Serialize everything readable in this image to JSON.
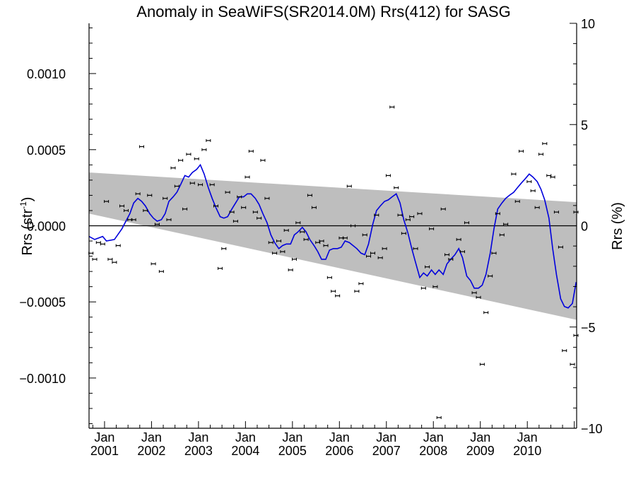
{
  "chart_data": {
    "type": "scatter",
    "title": "Anomaly in SeaWiFS(SR2014.0M) Rrs(412) for SASG",
    "ylabel_left": "Rrs (str",
    "ylabel_left_sup": "-1",
    "ylabel_left_close": ")",
    "ylabel_right": "Rrs (%)",
    "ylim": [
      -0.00133,
      0.00133
    ],
    "ylim_right": [
      -10,
      10
    ],
    "yticks_left": [
      -0.001,
      -0.0005,
      0.0,
      0.0005,
      0.001
    ],
    "yticks_left_labels": [
      "−0.0010",
      "−0.0005",
      "0.0000",
      "0.0005",
      "0.0010"
    ],
    "yticks_right": [
      -10,
      -5,
      0,
      5,
      10
    ],
    "yticks_right_labels": [
      "−10",
      "−5",
      "0",
      "5",
      "10"
    ],
    "xlim": [
      "2000-09",
      "2011-01"
    ],
    "xticks": [
      {
        "month": "Jan",
        "year": "2001",
        "x": 2001.0
      },
      {
        "month": "Jan",
        "year": "2002",
        "x": 2002.0
      },
      {
        "month": "Jan",
        "year": "2003",
        "x": 2003.0
      },
      {
        "month": "Jan",
        "year": "2004",
        "x": 2004.0
      },
      {
        "month": "Jan",
        "year": "2005",
        "x": 2005.0
      },
      {
        "month": "Jan",
        "year": "2006",
        "x": 2006.0
      },
      {
        "month": "Jan",
        "year": "2007",
        "x": 2007.0
      },
      {
        "month": "Jan",
        "year": "2008",
        "x": 2008.0
      },
      {
        "month": "Jan",
        "year": "2009",
        "x": 2009.0
      },
      {
        "month": "Jan",
        "year": "2010",
        "x": 2010.0
      }
    ],
    "band": {
      "x": [
        2000.67,
        2011.05
      ],
      "upper": [
        0.00035,
        0.000155
      ],
      "lower": [
        8e-05,
        -0.000618
      ]
    },
    "zero_line": 0,
    "series": [
      {
        "type": "scatter-errorbar",
        "color": "#000000",
        "points": [
          [
            2000.71,
            -0.00018
          ],
          [
            2000.79,
            -0.00022
          ],
          [
            2000.87,
            -0.00011
          ],
          [
            2000.96,
            -0.00012
          ],
          [
            2001.04,
            0.00016
          ],
          [
            2001.12,
            -0.00022
          ],
          [
            2001.21,
            -0.00024
          ],
          [
            2001.29,
            -0.00013
          ],
          [
            2001.37,
            0.00013
          ],
          [
            2001.46,
            0.0001
          ],
          [
            2001.54,
            4e-05
          ],
          [
            2001.62,
            4e-05
          ],
          [
            2001.71,
            0.00021
          ],
          [
            2001.79,
            0.00052
          ],
          [
            2001.87,
            0.0001
          ],
          [
            2001.96,
            0.0002
          ],
          [
            2002.04,
            -0.00025
          ],
          [
            2002.12,
            1e-05
          ],
          [
            2002.21,
            -0.0003
          ],
          [
            2002.29,
            0.00018
          ],
          [
            2002.37,
            4e-05
          ],
          [
            2002.46,
            0.00038
          ],
          [
            2002.54,
            0.00026
          ],
          [
            2002.62,
            0.00043
          ],
          [
            2002.71,
            0.00011
          ],
          [
            2002.79,
            0.00047
          ],
          [
            2002.87,
            0.00028
          ],
          [
            2002.96,
            0.00044
          ],
          [
            2003.04,
            0.00027
          ],
          [
            2003.12,
            0.0005
          ],
          [
            2003.21,
            0.00056
          ],
          [
            2003.29,
            0.00027
          ],
          [
            2003.37,
            0.00013
          ],
          [
            2003.46,
            -0.00028
          ],
          [
            2003.54,
            -0.00015
          ],
          [
            2003.62,
            0.00022
          ],
          [
            2003.71,
            9e-05
          ],
          [
            2003.79,
            3e-05
          ],
          [
            2003.87,
            0.00019
          ],
          [
            2003.96,
            0.00012
          ],
          [
            2004.04,
            0.00032
          ],
          [
            2004.12,
            0.00049
          ],
          [
            2004.21,
            9e-05
          ],
          [
            2004.29,
            5e-05
          ],
          [
            2004.37,
            0.00043
          ],
          [
            2004.46,
            0.00018
          ],
          [
            2004.54,
            -0.00011
          ],
          [
            2004.62,
            -0.00018
          ],
          [
            2004.71,
            -0.0001
          ],
          [
            2004.79,
            -0.00017
          ],
          [
            2004.87,
            -3e-05
          ],
          [
            2004.96,
            -0.00029
          ],
          [
            2005.04,
            -0.00022
          ],
          [
            2005.12,
            2e-05
          ],
          [
            2005.21,
            -4e-05
          ],
          [
            2005.29,
            -9e-05
          ],
          [
            2005.37,
            0.0002
          ],
          [
            2005.46,
            0.00012
          ],
          [
            2005.54,
            -0.00011
          ],
          [
            2005.62,
            -0.0001
          ],
          [
            2005.71,
            -0.00013
          ],
          [
            2005.79,
            -0.00034
          ],
          [
            2005.87,
            -0.00043
          ],
          [
            2005.96,
            -0.00046
          ],
          [
            2006.04,
            -8e-05
          ],
          [
            2006.12,
            -8e-05
          ],
          [
            2006.21,
            0.00026
          ],
          [
            2006.29,
            0.0
          ],
          [
            2006.37,
            -0.00043
          ],
          [
            2006.46,
            -0.00038
          ],
          [
            2006.54,
            -6e-05
          ],
          [
            2006.62,
            -0.0002
          ],
          [
            2006.71,
            -0.00018
          ],
          [
            2006.79,
            7e-05
          ],
          [
            2006.87,
            -0.00021
          ],
          [
            2006.96,
            -0.00015
          ],
          [
            2007.04,
            0.00033
          ],
          [
            2007.12,
            0.00078
          ],
          [
            2007.21,
            0.00025
          ],
          [
            2007.29,
            7e-05
          ],
          [
            2007.37,
            -5e-05
          ],
          [
            2007.46,
            4e-05
          ],
          [
            2007.54,
            6e-05
          ],
          [
            2007.62,
            -0.00015
          ],
          [
            2007.71,
            8e-05
          ],
          [
            2007.79,
            -0.00041
          ],
          [
            2007.87,
            -0.00027
          ],
          [
            2007.96,
            -2e-05
          ],
          [
            2008.04,
            -0.0004
          ],
          [
            2008.12,
            -0.00126
          ],
          [
            2008.21,
            0.00011
          ],
          [
            2008.29,
            -0.00019
          ],
          [
            2008.37,
            -0.00022
          ],
          [
            2008.54,
            -9e-05
          ],
          [
            2008.62,
            -0.00017
          ],
          [
            2008.71,
            2e-05
          ],
          [
            2008.87,
            -0.00044
          ],
          [
            2008.96,
            -0.00047
          ],
          [
            2009.04,
            -0.00091
          ],
          [
            2009.12,
            -0.00057
          ],
          [
            2009.21,
            -0.00033
          ],
          [
            2009.29,
            -0.00018
          ],
          [
            2009.37,
            8e-05
          ],
          [
            2009.46,
            -6e-05
          ],
          [
            2009.54,
            1e-05
          ],
          [
            2009.71,
            0.00034
          ],
          [
            2009.79,
            0.00016
          ],
          [
            2009.87,
            0.00049
          ],
          [
            2010.04,
            0.00029
          ],
          [
            2010.12,
            0.00023
          ],
          [
            2010.21,
            0.00012
          ],
          [
            2010.29,
            0.00047
          ],
          [
            2010.37,
            0.00054
          ],
          [
            2010.46,
            0.00033
          ],
          [
            2010.54,
            0.00032
          ],
          [
            2010.62,
            9e-05
          ],
          [
            2010.71,
            -0.00014
          ],
          [
            2010.79,
            -0.00082
          ],
          [
            2010.96,
            -0.00091
          ],
          [
            2011.04,
            -0.00072
          ],
          [
            2011.04,
            9e-05
          ]
        ]
      },
      {
        "type": "line",
        "color": "#0000dd",
        "points": [
          [
            2000.67,
            -7e-05
          ],
          [
            2000.79,
            -9e-05
          ],
          [
            2000.96,
            -7e-05
          ],
          [
            2001.04,
            -0.0001
          ],
          [
            2001.21,
            -9e-05
          ],
          [
            2001.37,
            -2e-05
          ],
          [
            2001.54,
            8e-05
          ],
          [
            2001.62,
            0.00015
          ],
          [
            2001.71,
            0.00018
          ],
          [
            2001.79,
            0.00016
          ],
          [
            2001.87,
            0.00013
          ],
          [
            2001.96,
            8e-05
          ],
          [
            2002.04,
            5e-05
          ],
          [
            2002.12,
            3e-05
          ],
          [
            2002.21,
            4e-05
          ],
          [
            2002.29,
            8e-05
          ],
          [
            2002.37,
            0.00016
          ],
          [
            2002.46,
            0.00019
          ],
          [
            2002.54,
            0.00022
          ],
          [
            2002.62,
            0.00027
          ],
          [
            2002.71,
            0.00033
          ],
          [
            2002.79,
            0.00032
          ],
          [
            2002.87,
            0.00035
          ],
          [
            2002.96,
            0.00037
          ],
          [
            2003.04,
            0.0004
          ],
          [
            2003.12,
            0.00034
          ],
          [
            2003.21,
            0.00025
          ],
          [
            2003.29,
            0.00018
          ],
          [
            2003.37,
            0.00012
          ],
          [
            2003.46,
            6e-05
          ],
          [
            2003.54,
            5e-05
          ],
          [
            2003.62,
            6e-05
          ],
          [
            2003.71,
            0.00011
          ],
          [
            2003.79,
            0.00015
          ],
          [
            2003.87,
            0.00019
          ],
          [
            2003.96,
            0.00019
          ],
          [
            2004.04,
            0.00021
          ],
          [
            2004.12,
            0.00021
          ],
          [
            2004.21,
            0.00018
          ],
          [
            2004.29,
            0.00014
          ],
          [
            2004.37,
            8e-05
          ],
          [
            2004.46,
            2e-05
          ],
          [
            2004.54,
            -6e-05
          ],
          [
            2004.62,
            -0.00011
          ],
          [
            2004.71,
            -0.00015
          ],
          [
            2004.79,
            -0.00013
          ],
          [
            2004.87,
            -0.00012
          ],
          [
            2004.96,
            -0.00012
          ],
          [
            2005.04,
            -6e-05
          ],
          [
            2005.12,
            -4e-05
          ],
          [
            2005.21,
            -1e-05
          ],
          [
            2005.29,
            -4e-05
          ],
          [
            2005.37,
            -9e-05
          ],
          [
            2005.46,
            -0.00013
          ],
          [
            2005.54,
            -0.00017
          ],
          [
            2005.62,
            -0.00022
          ],
          [
            2005.71,
            -0.00022
          ],
          [
            2005.79,
            -0.00016
          ],
          [
            2005.87,
            -0.00015
          ],
          [
            2005.96,
            -0.00015
          ],
          [
            2006.04,
            -0.00014
          ],
          [
            2006.12,
            -0.0001
          ],
          [
            2006.21,
            -0.00011
          ],
          [
            2006.29,
            -0.00013
          ],
          [
            2006.37,
            -0.00015
          ],
          [
            2006.46,
            -0.00018
          ],
          [
            2006.54,
            -0.00019
          ],
          [
            2006.62,
            -0.00012
          ],
          [
            2006.71,
            1e-05
          ],
          [
            2006.79,
            0.0001
          ],
          [
            2006.87,
            0.00013
          ],
          [
            2006.96,
            0.00016
          ],
          [
            2007.04,
            0.00017
          ],
          [
            2007.12,
            0.00019
          ],
          [
            2007.21,
            0.00021
          ],
          [
            2007.29,
            0.00015
          ],
          [
            2007.37,
            4e-05
          ],
          [
            2007.46,
            -5e-05
          ],
          [
            2007.54,
            -0.00015
          ],
          [
            2007.62,
            -0.00024
          ],
          [
            2007.71,
            -0.00034
          ],
          [
            2007.79,
            -0.00031
          ],
          [
            2007.87,
            -0.00033
          ],
          [
            2007.96,
            -0.00029
          ],
          [
            2008.04,
            -0.00032
          ],
          [
            2008.12,
            -0.00029
          ],
          [
            2008.21,
            -0.00032
          ],
          [
            2008.29,
            -0.00025
          ],
          [
            2008.37,
            -0.00022
          ],
          [
            2008.46,
            -0.00019
          ],
          [
            2008.54,
            -0.00015
          ],
          [
            2008.62,
            -0.00021
          ],
          [
            2008.71,
            -0.00033
          ],
          [
            2008.79,
            -0.00036
          ],
          [
            2008.87,
            -0.00041
          ],
          [
            2008.96,
            -0.00041
          ],
          [
            2009.04,
            -0.00039
          ],
          [
            2009.12,
            -0.00032
          ],
          [
            2009.21,
            -0.00018
          ],
          [
            2009.29,
            -2e-05
          ],
          [
            2009.37,
            0.00011
          ],
          [
            2009.46,
            0.00015
          ],
          [
            2009.54,
            0.00018
          ],
          [
            2009.62,
            0.0002
          ],
          [
            2009.71,
            0.00022
          ],
          [
            2009.79,
            0.00025
          ],
          [
            2009.87,
            0.00028
          ],
          [
            2009.96,
            0.00031
          ],
          [
            2010.04,
            0.00034
          ],
          [
            2010.12,
            0.00032
          ],
          [
            2010.21,
            0.00029
          ],
          [
            2010.29,
            0.00024
          ],
          [
            2010.37,
            0.00017
          ],
          [
            2010.46,
            5e-05
          ],
          [
            2010.54,
            -0.00015
          ],
          [
            2010.62,
            -0.00032
          ],
          [
            2010.71,
            -0.00048
          ],
          [
            2010.79,
            -0.00053
          ],
          [
            2010.87,
            -0.00054
          ],
          [
            2010.96,
            -0.00051
          ],
          [
            2011.04,
            -0.00037
          ]
        ]
      }
    ]
  }
}
